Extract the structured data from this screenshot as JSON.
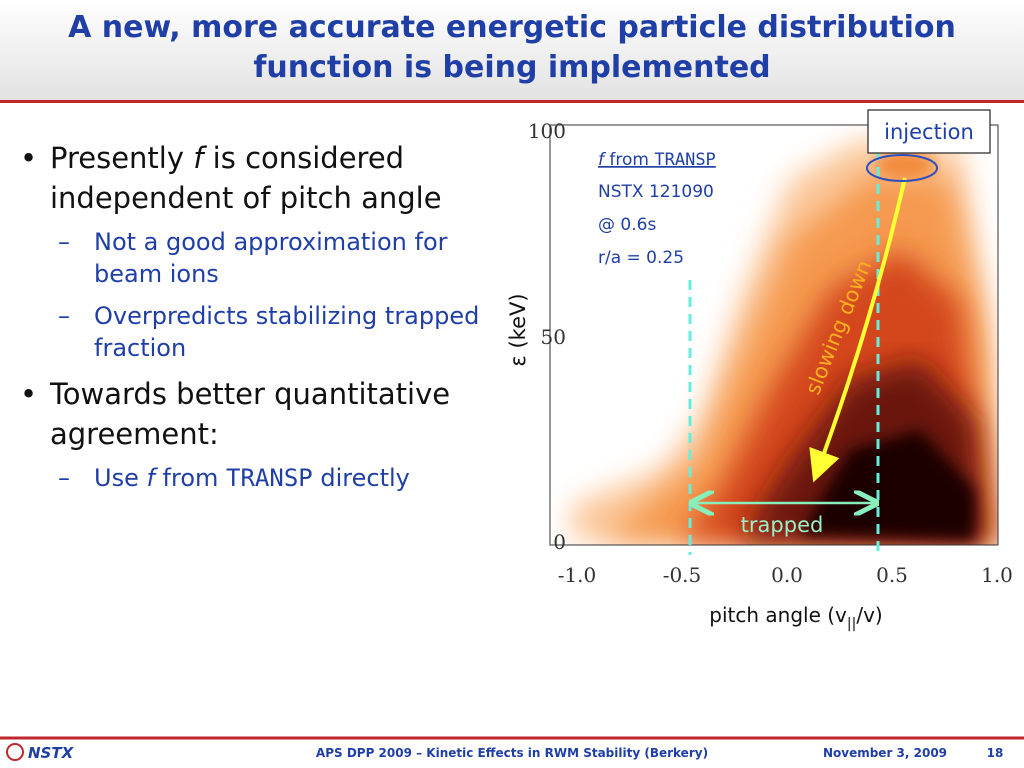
{
  "header": {
    "title_line1": "A new, more accurate energetic particle distribution",
    "title_line2": "function is being implemented"
  },
  "bullets": [
    {
      "parts": [
        "Presently ",
        "f",
        " is considered independent of pitch angle"
      ],
      "sub": [
        [
          "Not a good approximation for beam ions"
        ],
        [
          "Overpredicts stabilizing trapped fraction"
        ]
      ]
    },
    {
      "parts": [
        "Towards better quantitative agreement:"
      ],
      "sub": [
        [
          "Use ",
          "f",
          "  from ",
          "TRANSP",
          " directly"
        ]
      ]
    }
  ],
  "figure": {
    "yticks": [
      "100",
      "50",
      "0"
    ],
    "xticks": [
      "-1.0",
      "-0.5",
      "0.0",
      "0.5",
      "1.0"
    ],
    "ylabel": "ε (keV)",
    "xlabel": [
      "pitch angle (v",
      "||",
      "/v)"
    ],
    "source": [
      "f",
      " from ",
      "TRANSP"
    ],
    "info": [
      "NSTX 121090",
      "@ 0.6s",
      "r/a = 0.25"
    ],
    "injection": "injection",
    "slowing": "slowing down",
    "trapped": "trapped"
  },
  "footer": {
    "logo": "NSTX",
    "talk": "APS DPP 2009 – Kinetic Effects in RWM Stability (Berkery)",
    "date": "November 3, 2009",
    "page": "18"
  }
}
